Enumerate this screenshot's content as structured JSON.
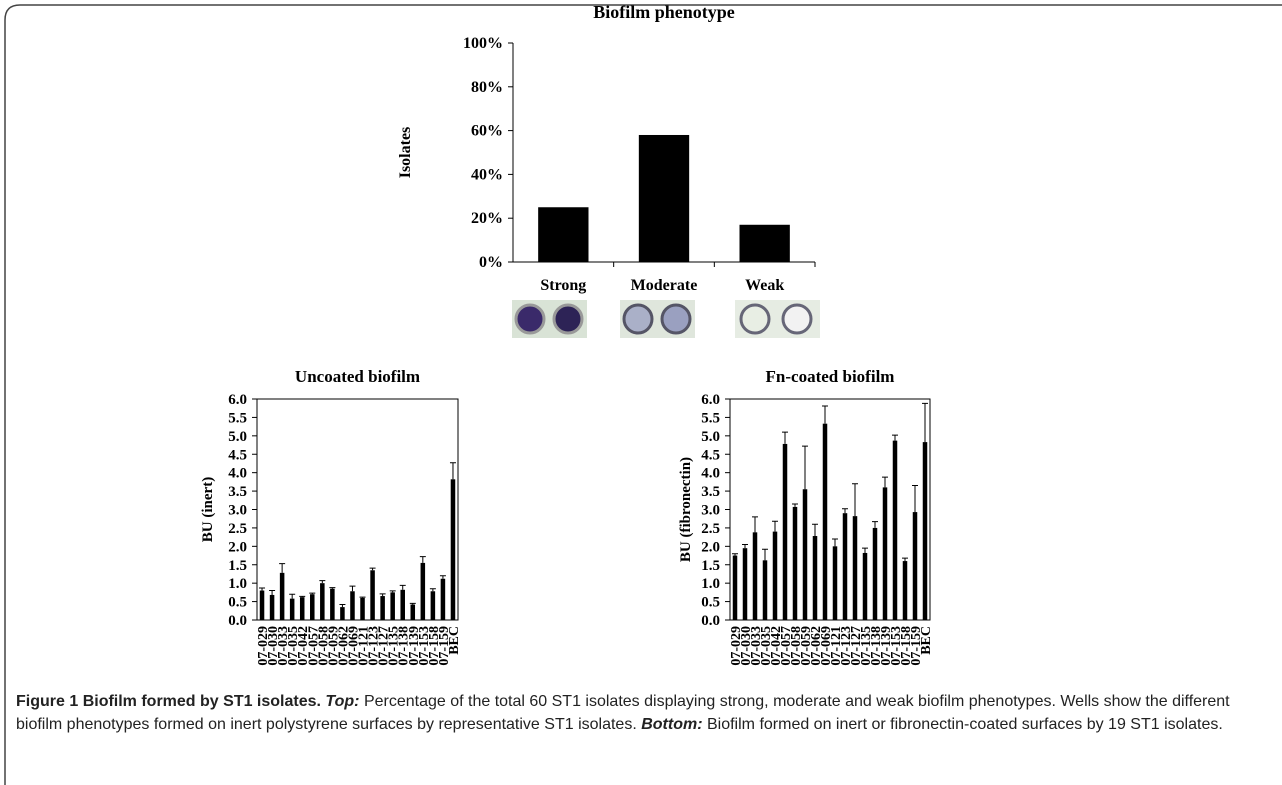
{
  "chart_data": [
    {
      "type": "bar",
      "title": "Biofilm phenotype",
      "y_label": "Isolates",
      "categories": [
        "Strong",
        "Moderate",
        "Weak"
      ],
      "values": [
        25,
        58,
        17
      ],
      "color": "#000000",
      "ylim": [
        0,
        100
      ],
      "yticks": [
        {
          "value": 0,
          "label": "0%"
        },
        {
          "value": 20,
          "label": "20%"
        },
        {
          "value": 40,
          "label": "40%"
        },
        {
          "value": 60,
          "label": "60%"
        },
        {
          "value": 80,
          "label": "80%"
        },
        {
          "value": 100,
          "label": "100%"
        }
      ],
      "grid": false
    },
    {
      "type": "bar",
      "title": "Uncoated biofilm",
      "y_label": "BU (inert)",
      "categories": [
        "07-029",
        "07-030",
        "07-033",
        "07-035",
        "07-042",
        "07-057",
        "07-058",
        "07-059",
        "07-062",
        "07-069",
        "07-121",
        "07-123",
        "07-127",
        "07-135",
        "07-138",
        "07-139",
        "07-153",
        "07-158",
        "07-159",
        "BEC"
      ],
      "values": [
        0.8,
        0.68,
        1.28,
        0.58,
        0.62,
        0.7,
        1.0,
        0.85,
        0.35,
        0.78,
        0.6,
        1.35,
        0.65,
        0.75,
        0.82,
        0.42,
        1.55,
        0.78,
        1.12,
        3.82
      ],
      "errors": [
        0.07,
        0.12,
        0.25,
        0.12,
        0.02,
        0.03,
        0.07,
        0.03,
        0.07,
        0.14,
        0.02,
        0.06,
        0.06,
        0.04,
        0.12,
        0.03,
        0.17,
        0.07,
        0.08,
        0.45
      ],
      "color": "#000000",
      "ylim": [
        0,
        6
      ],
      "yticks": [
        {
          "value": 0,
          "label": "0.0"
        },
        0.5,
        {
          "value": 1,
          "label": "1.0"
        },
        1.5,
        {
          "value": 2,
          "label": "2.0"
        },
        2.5,
        {
          "value": 3,
          "label": "3.0"
        },
        3.5,
        {
          "value": 4,
          "label": "4.0"
        },
        4.5,
        {
          "value": 5,
          "label": "5.0"
        },
        5.5,
        {
          "value": 6,
          "label": "6.0"
        }
      ],
      "grid": false
    },
    {
      "type": "bar",
      "title": "Fn-coated biofilm",
      "y_label": "BU (fibronectin)",
      "categories": [
        "07-029",
        "07-030",
        "07-033",
        "07-035",
        "07-042",
        "07-057",
        "07-058",
        "07-059",
        "07-062",
        "07-069",
        "07-121",
        "07-123",
        "07-127",
        "07-135",
        "07-138",
        "07-139",
        "07-153",
        "07-158",
        "07-159",
        "BEC"
      ],
      "values": [
        1.75,
        1.95,
        2.38,
        1.62,
        2.4,
        4.78,
        3.07,
        3.55,
        2.28,
        5.33,
        2.0,
        2.9,
        2.82,
        1.82,
        2.5,
        3.6,
        4.87,
        1.6,
        2.93,
        4.83
      ],
      "errors": [
        0.05,
        0.1,
        0.42,
        0.3,
        0.28,
        0.32,
        0.08,
        1.17,
        0.32,
        0.48,
        0.2,
        0.12,
        0.88,
        0.13,
        0.17,
        0.28,
        0.15,
        0.08,
        0.72,
        1.05
      ],
      "color": "#000000",
      "ylim": [
        0,
        6
      ],
      "yticks": [
        {
          "value": 0,
          "label": "0.0"
        },
        0.5,
        {
          "value": 1,
          "label": "1.0"
        },
        1.5,
        {
          "value": 2,
          "label": "2.0"
        },
        2.5,
        {
          "value": 3,
          "label": "3.0"
        },
        3.5,
        {
          "value": 4,
          "label": "4.0"
        },
        4.5,
        {
          "value": 5,
          "label": "5.0"
        },
        5.5,
        {
          "value": 6,
          "label": "6.0"
        }
      ],
      "grid": false
    }
  ],
  "caption": {
    "label": "Figure 1",
    "title": "Biofilm formed by ST1 isolates.",
    "top_label": "Top:",
    "top_text": "Percentage of the total 60 ST1 isolates displaying strong, moderate and weak biofilm phenotypes. Wells show the different biofilm phenotypes formed on inert polystyrene surfaces by representative ST1 isolates.",
    "bottom_label": "Bottom:",
    "bottom_text": "Biofilm formed on inert or fibronectin-coated surfaces by 19 ST1 isolates."
  }
}
